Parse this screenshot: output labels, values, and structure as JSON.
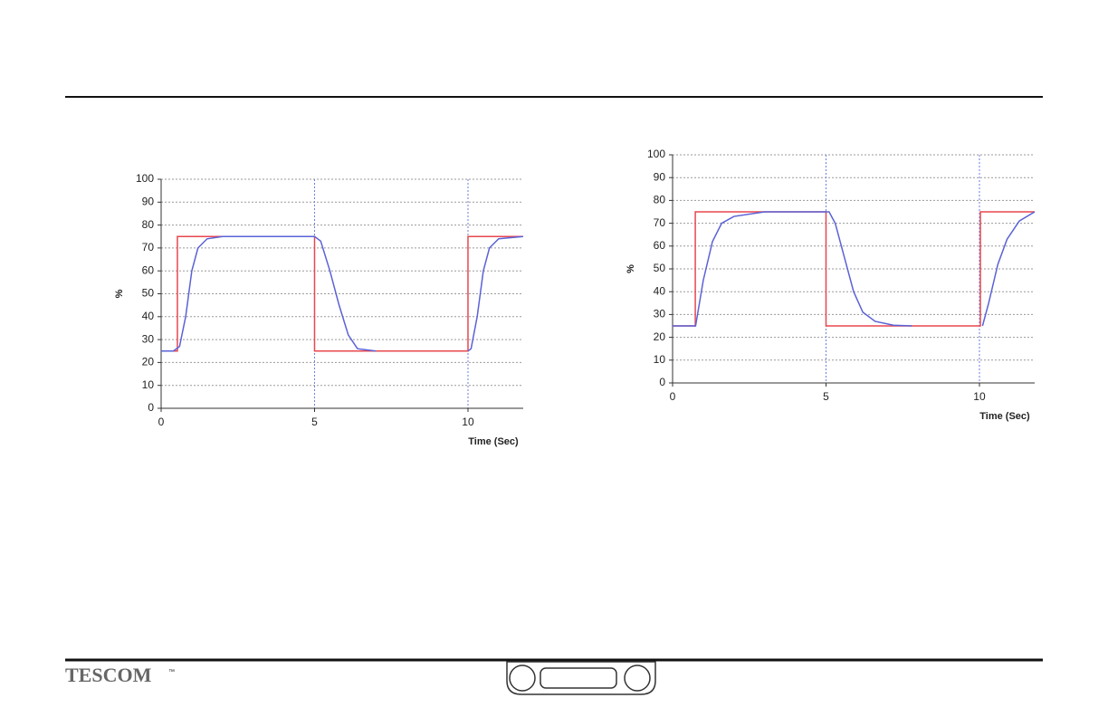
{
  "chart_data": [
    {
      "type": "line",
      "xlabel": "Time (Sec)",
      "ylabel": "%",
      "xlim": [
        0,
        11.8
      ],
      "ylim": [
        0,
        100
      ],
      "xticks": [
        0,
        5,
        10
      ],
      "yticks": [
        0,
        10,
        20,
        30,
        40,
        50,
        60,
        70,
        80,
        90,
        100
      ],
      "grid": true,
      "series": [
        {
          "color": "#e8474f",
          "x": [
            0,
            0.53,
            0.53,
            5,
            5,
            10,
            10,
            11.8
          ],
          "values": [
            25,
            25,
            75,
            75,
            25,
            25,
            75,
            75
          ]
        },
        {
          "color": "#5a62d6",
          "x": [
            0,
            0.4,
            0.6,
            0.8,
            1.0,
            1.2,
            1.5,
            2,
            5,
            5.2,
            5.5,
            5.8,
            6.1,
            6.4,
            7,
            8,
            10,
            10.1,
            10.3,
            10.5,
            10.7,
            11,
            11.8
          ],
          "values": [
            25,
            25,
            27,
            40,
            60,
            70,
            74,
            75,
            75,
            73,
            60,
            45,
            32,
            26,
            25,
            null,
            25,
            26,
            40,
            60,
            70,
            74,
            75
          ]
        }
      ]
    },
    {
      "type": "line",
      "xlabel": "Time (Sec)",
      "ylabel": "%",
      "xlim": [
        0,
        11.8
      ],
      "ylim": [
        0,
        100
      ],
      "xticks": [
        0,
        5,
        10
      ],
      "yticks": [
        0,
        10,
        20,
        30,
        40,
        50,
        60,
        70,
        80,
        90,
        100
      ],
      "grid": true,
      "series": [
        {
          "color": "#e8474f",
          "x": [
            0,
            0.74,
            0.74,
            5,
            5,
            10.03,
            10.03,
            11.8
          ],
          "values": [
            25,
            25,
            75,
            75,
            25,
            25,
            75,
            75
          ]
        },
        {
          "color": "#5a62d6",
          "x": [
            0,
            0.75,
            1.0,
            1.3,
            1.6,
            2,
            3,
            5.1,
            5.3,
            5.6,
            5.9,
            6.2,
            6.6,
            7.2,
            7.8,
            9,
            10.1,
            10.3,
            10.6,
            10.9,
            11.3,
            11.8
          ],
          "values": [
            25,
            25,
            45,
            62,
            70,
            73,
            75,
            75,
            70,
            55,
            40,
            31,
            27,
            25.3,
            25,
            null,
            25,
            35,
            52,
            63,
            71,
            75
          ]
        }
      ]
    }
  ],
  "footer": {
    "logo": "TESCOM",
    "trademark": "™"
  }
}
